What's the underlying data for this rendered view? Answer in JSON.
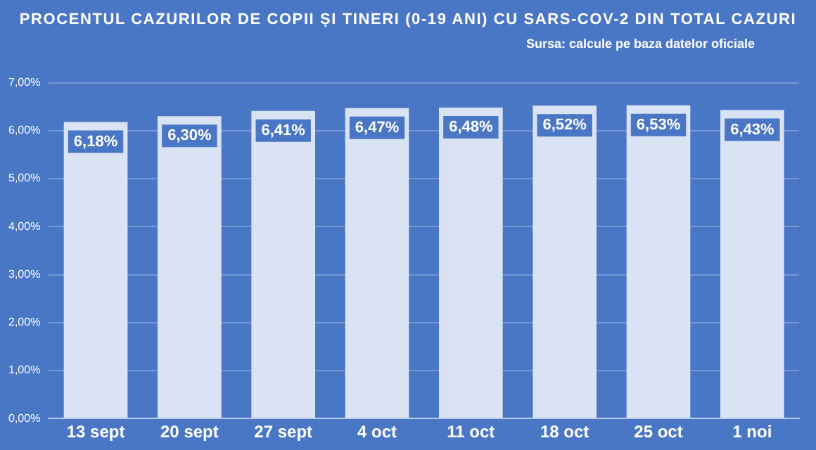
{
  "chart_data": {
    "type": "bar",
    "title": "PROCENTUL CAZURILOR DE COPII ȘI TINERI (0-19 ANI) CU SARS-COV-2 DIN TOTAL CAZURI",
    "annotations": [
      "Sursa: calcule pe baza datelor oficiale"
    ],
    "categories": [
      "13 sept",
      "20 sept",
      "27 sept",
      "4 oct",
      "11 oct",
      "18 oct",
      "25 oct",
      "1 noi"
    ],
    "values": [
      6.18,
      6.3,
      6.41,
      6.47,
      6.48,
      6.52,
      6.53,
      6.43
    ],
    "value_labels": [
      "6,18%",
      "6,30%",
      "6,41%",
      "6,47%",
      "6,48%",
      "6,52%",
      "6,53%",
      "6,43%"
    ],
    "color": "#d9e3f4",
    "ylim": [
      0,
      7
    ],
    "yticks": [
      {
        "value": 0,
        "label": "0,00%"
      },
      {
        "value": 1,
        "label": "1,00%"
      },
      {
        "value": 2,
        "label": "2,00%"
      },
      {
        "value": 3,
        "label": "3,00%"
      },
      {
        "value": 4,
        "label": "4,00%"
      },
      {
        "value": 5,
        "label": "5,00%"
      },
      {
        "value": 6,
        "label": "6,00%"
      },
      {
        "value": 7,
        "label": "7,00%"
      }
    ],
    "grid": "y",
    "legend": false
  }
}
